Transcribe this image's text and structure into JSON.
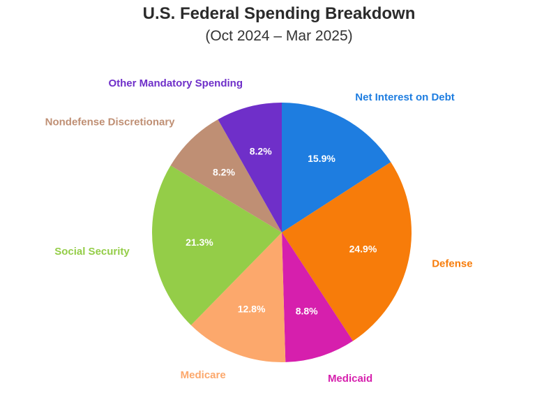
{
  "title": "U.S. Federal Spending Breakdown",
  "subtitle": "(Oct 2024 – Mar 2025)",
  "chart_data": {
    "type": "pie",
    "title": "U.S. Federal Spending Breakdown",
    "subtitle": "(Oct 2024 – Mar 2025)",
    "unit": "%",
    "start_angle_deg": 0,
    "direction": "clockwise",
    "legend": "none (labels beside slices)",
    "slices": [
      {
        "label": "Net Interest on Debt",
        "value": 15.9,
        "value_label": "15.9%",
        "color": "#1e7de0"
      },
      {
        "label": "Defense",
        "value": 24.9,
        "value_label": "24.9%",
        "color": "#f77c0a"
      },
      {
        "label": "Medicaid",
        "value": 8.8,
        "value_label": "8.8%",
        "color": "#d61fad"
      },
      {
        "label": "Medicare",
        "value": 12.8,
        "value_label": "12.8%",
        "color": "#fca86c"
      },
      {
        "label": "Social Security",
        "value": 21.3,
        "value_label": "21.3%",
        "color": "#94cd48"
      },
      {
        "label": "Nondefense Discretionary",
        "value": 8.2,
        "value_label": "8.2%",
        "color": "#bf8f74"
      },
      {
        "label": "Other Mandatory Spending",
        "value": 8.2,
        "value_label": "8.2%",
        "color": "#6f2fc9"
      }
    ]
  }
}
